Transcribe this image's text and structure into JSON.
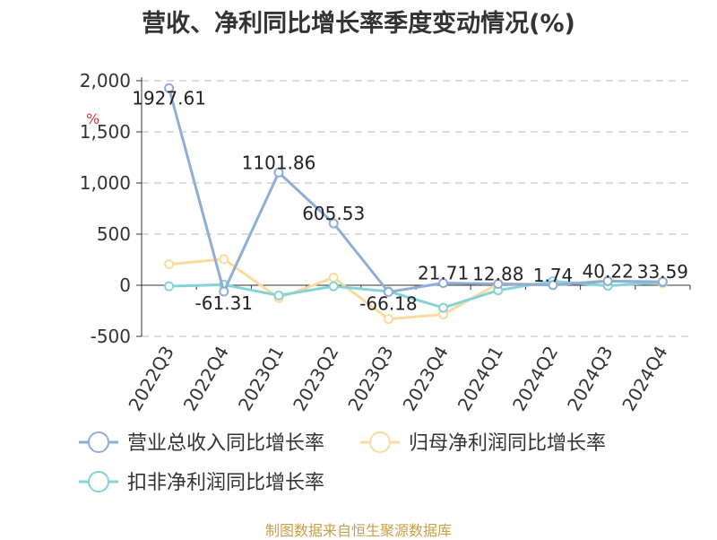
{
  "chart_data": {
    "type": "line",
    "title": "营收、净利同比增长率季度变动情况(%)",
    "ylabel": "%",
    "ylim": [
      -500,
      2000
    ],
    "yticks": [
      2000,
      1500,
      1000,
      500,
      0,
      -500
    ],
    "ytick_labels": [
      "2,000",
      "1,500",
      "1,000",
      "500",
      "0",
      "-500"
    ],
    "grid": true,
    "legend_position": "bottom",
    "categories": [
      "2022Q3",
      "2022Q4",
      "2023Q1",
      "2023Q2",
      "2023Q3",
      "2023Q4",
      "2024Q1",
      "2024Q2",
      "2024Q3",
      "2024Q4"
    ],
    "series": [
      {
        "name": "营业总收入同比增长率",
        "color": "#8eaed8",
        "values": [
          1927.61,
          -61.31,
          1101.86,
          605.53,
          -66.18,
          21.71,
          12.88,
          1.74,
          40.22,
          33.59
        ],
        "labels": [
          "1927.61",
          "-61.31",
          "1101.86",
          "605.53",
          "-66.18",
          "21.71",
          "12.88",
          "1.74",
          "40.22",
          "33.59"
        ]
      },
      {
        "name": "归母净利润同比增长率",
        "color": "#f9dba0",
        "values": [
          205,
          255,
          -125,
          75,
          -330,
          -285,
          15,
          10,
          45,
          20
        ]
      },
      {
        "name": "扣非净利润同比增长率",
        "color": "#86d2d6",
        "values": [
          -10,
          5,
          -100,
          -10,
          -60,
          -220,
          -50,
          40,
          -5,
          30
        ]
      }
    ]
  },
  "source": "制图数据来自恒生聚源数据库"
}
